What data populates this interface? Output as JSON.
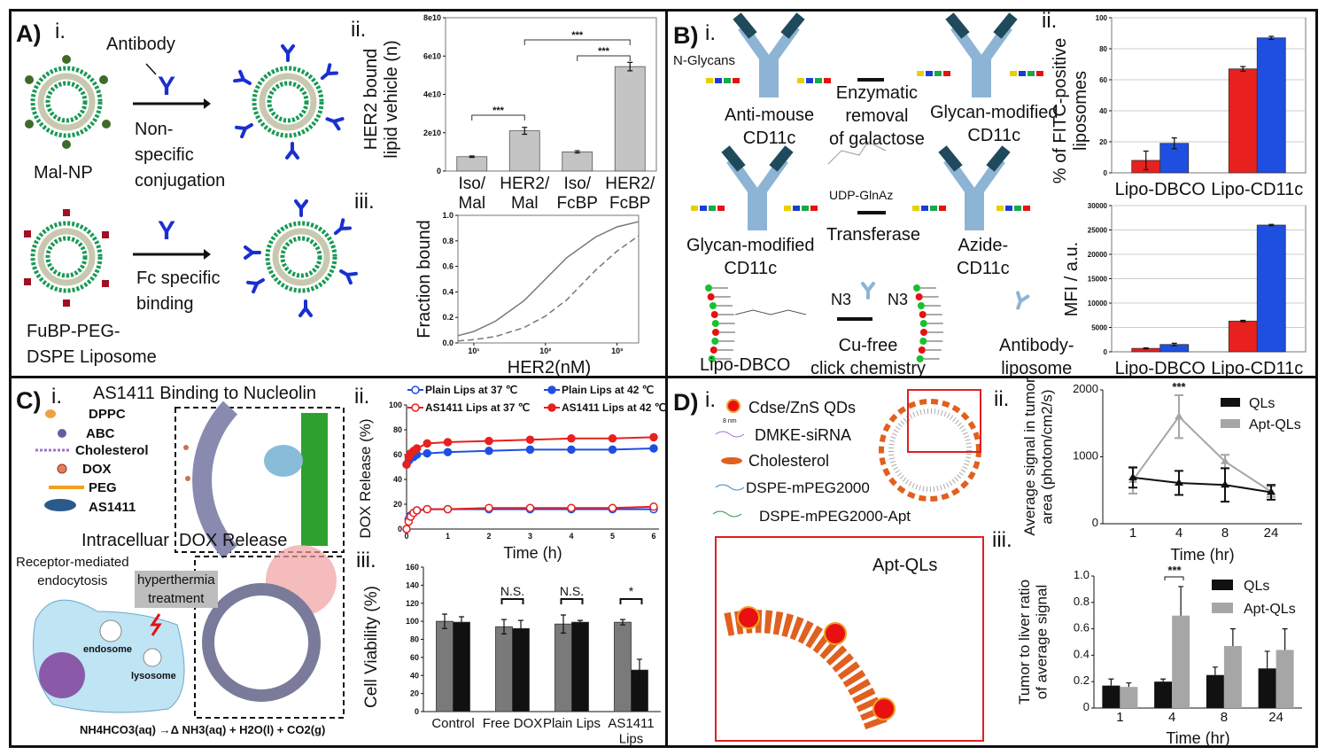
{
  "panelA": {
    "label": "A)",
    "sub_i": "i.",
    "sub_ii": "ii.",
    "sub_iii": "iii.",
    "antibody": "Antibody",
    "antibody_glyph": "Y",
    "malnp": "Mal-NP",
    "nonspecific": "Non-\nspecific\nconjugation",
    "fc": "Fc specific\nbinding",
    "fubp": "FuBP-PEG-\nDSPE Liposome"
  },
  "panelB": {
    "label": "B)",
    "sub_i": "i.",
    "sub_ii": "ii.",
    "nglycans": "N-Glycans",
    "antimouse": "Anti-mouse\nCD11c",
    "enzymatic": "Enzymatic\nremoval\nof galactose",
    "glycan1": "Glycan-modified\nCD11c",
    "glycan2": "Glycan-modified\nCD11c",
    "udp": "UDP-GlnAz",
    "transferase": "Transferase",
    "azide": "Azide-\nCD11c",
    "n3a": "N3",
    "n3b": "N3",
    "lipodbco": "Lipo-DBCO",
    "cufree": "Cu-free\nclick chemistry",
    "abl": "Antibody-\nliposome"
  },
  "panelC": {
    "label": "C)",
    "sub_i": "i.",
    "sub_ii": "ii.",
    "sub_iii": "iii.",
    "title1": "AS1411 Binding to Nucleolin",
    "legend": [
      "DPPC",
      "ABC",
      "Cholesterol",
      "DOX",
      "PEG",
      "AS1411"
    ],
    "title2": "Intracelluar  DOX Release",
    "receptor": "Receptor-mediated\nendocytosis",
    "hyper": "hyperthermia\ntreatment",
    "endosome": "endosome",
    "lysosome": "lysosome",
    "equation": "NH4HCO3(aq) →Δ NH3(aq) + H2O(l) + CO2(g)"
  },
  "panelD": {
    "label": "D)",
    "sub_i": "i.",
    "sub_ii": "ii.",
    "sub_iii": "iii.",
    "legend": [
      "Cdse/ZnS QDs",
      "DMKE-siRNA",
      "Cholesterol",
      "DSPE-mPEG2000",
      "DSPE-mPEG2000-Apt"
    ],
    "scale": "8 nm",
    "aptqls": "Apt-QLs"
  },
  "colors": {
    "red": "#e8201e",
    "blue": "#1f4fe0",
    "gray": "#a6a6a6",
    "darkgray": "#7a7a7a",
    "black": "#111111"
  },
  "chart_data": [
    {
      "id": "A-ii",
      "type": "bar",
      "ylabel": "HER2 bound\nlipid vehicle (n)",
      "categories": [
        "Iso/\nMal",
        "HER2/\nMal",
        "Iso/\nFcBP",
        "HER2/\nFcBP"
      ],
      "values": [
        7500000000.0,
        21000000000.0,
        10000000000.0,
        54500000000.0
      ],
      "errors": [
        400000000.0,
        1800000000.0,
        600000000.0,
        2200000000.0
      ],
      "ylim": [
        0,
        80000000000.0
      ],
      "yticks": [
        "0",
        "2e10",
        "4e10",
        "6e10",
        "8e10"
      ],
      "annotations": [
        "***",
        "***",
        "***"
      ]
    },
    {
      "id": "A-iii",
      "type": "line",
      "xscale": "log",
      "xlabel": "HER2(nM)",
      "ylabel": "Fraction bound",
      "xlim": [
        6,
        2000
      ],
      "ylim": [
        0,
        1
      ],
      "xticks": [
        10,
        100,
        1000
      ],
      "xticklabels": [
        "10¹",
        "10²",
        "10³"
      ],
      "yticks": [
        "0.0",
        "0.2",
        "0.4",
        "0.6",
        "0.8",
        "1.0"
      ],
      "x": [
        6,
        10,
        20,
        50,
        100,
        200,
        500,
        1000,
        2000
      ],
      "series": [
        {
          "style": "solid",
          "values": [
            0.057,
            0.09,
            0.17,
            0.33,
            0.5,
            0.67,
            0.83,
            0.91,
            0.95
          ]
        },
        {
          "style": "dashed",
          "values": [
            0.016,
            0.026,
            0.05,
            0.12,
            0.21,
            0.34,
            0.57,
            0.72,
            0.84
          ]
        }
      ]
    },
    {
      "id": "B-ii-top",
      "type": "bar",
      "ylabel": "% of FITC-positive\nliposomes",
      "categories": [
        "Lipo-DBCO",
        "Lipo-CD11c"
      ],
      "series": [
        {
          "color": "red",
          "values": [
            8,
            67
          ],
          "errors": [
            6,
            1.5
          ]
        },
        {
          "color": "blue",
          "values": [
            19,
            87
          ],
          "errors": [
            3.5,
            1
          ]
        }
      ],
      "ylim": [
        0,
        100
      ],
      "yticks": [
        "0",
        "20",
        "40",
        "60",
        "80",
        "100"
      ],
      "grid": true
    },
    {
      "id": "B-ii-bottom",
      "type": "bar",
      "ylabel": "MFI / a.u.",
      "categories": [
        "Lipo-DBCO",
        "Lipo-CD11c"
      ],
      "series": [
        {
          "color": "red",
          "values": [
            700,
            6300
          ],
          "errors": [
            100,
            150
          ]
        },
        {
          "color": "blue",
          "values": [
            1500,
            26000
          ],
          "errors": [
            250,
            150
          ]
        }
      ],
      "ylim": [
        0,
        30000
      ],
      "yticks": [
        "0",
        "5000",
        "10000",
        "15000",
        "20000",
        "25000",
        "30000"
      ],
      "grid": true
    },
    {
      "id": "C-ii",
      "type": "line",
      "xlabel": "Time (h)",
      "ylabel": "DOX Release (%)",
      "xlim": [
        0,
        6
      ],
      "ylim": [
        0,
        100
      ],
      "xticks": [
        "0",
        "1",
        "2",
        "3",
        "4",
        "5",
        "6"
      ],
      "yticks": [
        "0",
        "20",
        "40",
        "60",
        "80",
        "100"
      ],
      "x": [
        0,
        0.05,
        0.1,
        0.17,
        0.25,
        0.5,
        1,
        2,
        3,
        4,
        5,
        6
      ],
      "series": [
        {
          "name": "Plain Lips at 37 ℃",
          "color": "blue",
          "marker": "open",
          "values": [
            0,
            8,
            11,
            13,
            15,
            16,
            16,
            16,
            16,
            16,
            16,
            16
          ]
        },
        {
          "name": "Plain Lips at 42 ℃",
          "color": "blue",
          "marker": "filled",
          "values": [
            52,
            55,
            57,
            58,
            60,
            61,
            62,
            63,
            64,
            64,
            64,
            65
          ]
        },
        {
          "name": "AS1411 Lips at 37 ℃",
          "color": "red",
          "marker": "open",
          "values": [
            0,
            6,
            10,
            13,
            15,
            16,
            16,
            17,
            17,
            17,
            17,
            18
          ]
        },
        {
          "name": "AS1411 Lips at 42 ℃",
          "color": "red",
          "marker": "filled",
          "values": [
            52,
            58,
            61,
            63,
            65,
            69,
            70,
            71,
            72,
            73,
            73,
            74
          ]
        }
      ]
    },
    {
      "id": "C-iii",
      "type": "bar",
      "ylabel": "Cell Viability (%)",
      "categories": [
        "Control",
        "Free DOX",
        "Plain Lips",
        "AS1411\nLips"
      ],
      "series": [
        {
          "color": "darkgray",
          "values": [
            100,
            94,
            97,
            99
          ],
          "errors": [
            8,
            8,
            10,
            3
          ]
        },
        {
          "color": "black",
          "values": [
            99,
            92,
            99,
            46
          ],
          "errors": [
            6,
            9,
            2,
            12
          ]
        }
      ],
      "ylim": [
        0,
        160
      ],
      "yticks": [
        "0",
        "20",
        "40",
        "60",
        "80",
        "100",
        "120",
        "140",
        "160"
      ],
      "annotations": [
        "",
        "N.S.",
        "N.S.",
        "*"
      ]
    },
    {
      "id": "D-ii",
      "type": "line",
      "xlabel": "Time (hr)",
      "ylabel": "Average signal in tumor\narea (photon/cm2/s)",
      "categories": [
        "1",
        "4",
        "8",
        "24"
      ],
      "ylim": [
        0,
        2000
      ],
      "yticks": [
        "0",
        "1000",
        "2000"
      ],
      "annotation": "***",
      "series": [
        {
          "name": "QLs",
          "color": "black",
          "values": [
            690,
            610,
            580,
            470
          ],
          "errors": [
            150,
            180,
            250,
            110
          ]
        },
        {
          "name": "Apt-QLs",
          "color": "gray",
          "values": [
            650,
            1600,
            930,
            480
          ],
          "errors": [
            200,
            320,
            100,
            80
          ]
        }
      ]
    },
    {
      "id": "D-iii",
      "type": "bar",
      "xlabel": "Time (hr)",
      "ylabel": "Tumor to liver ratio\nof average signal",
      "categories": [
        "1",
        "4",
        "8",
        "24"
      ],
      "ylim": [
        0,
        1
      ],
      "yticks": [
        "0",
        "0.2",
        "0.4",
        "0.6",
        "0.8",
        "1.0"
      ],
      "annotation": "***",
      "series": [
        {
          "name": "QLs",
          "color": "black",
          "values": [
            0.17,
            0.2,
            0.25,
            0.3
          ],
          "errors": [
            0.05,
            0.02,
            0.06,
            0.13
          ]
        },
        {
          "name": "Apt-QLs",
          "color": "gray",
          "values": [
            0.16,
            0.7,
            0.47,
            0.44
          ],
          "errors": [
            0.03,
            0.22,
            0.13,
            0.16
          ]
        }
      ]
    }
  ]
}
